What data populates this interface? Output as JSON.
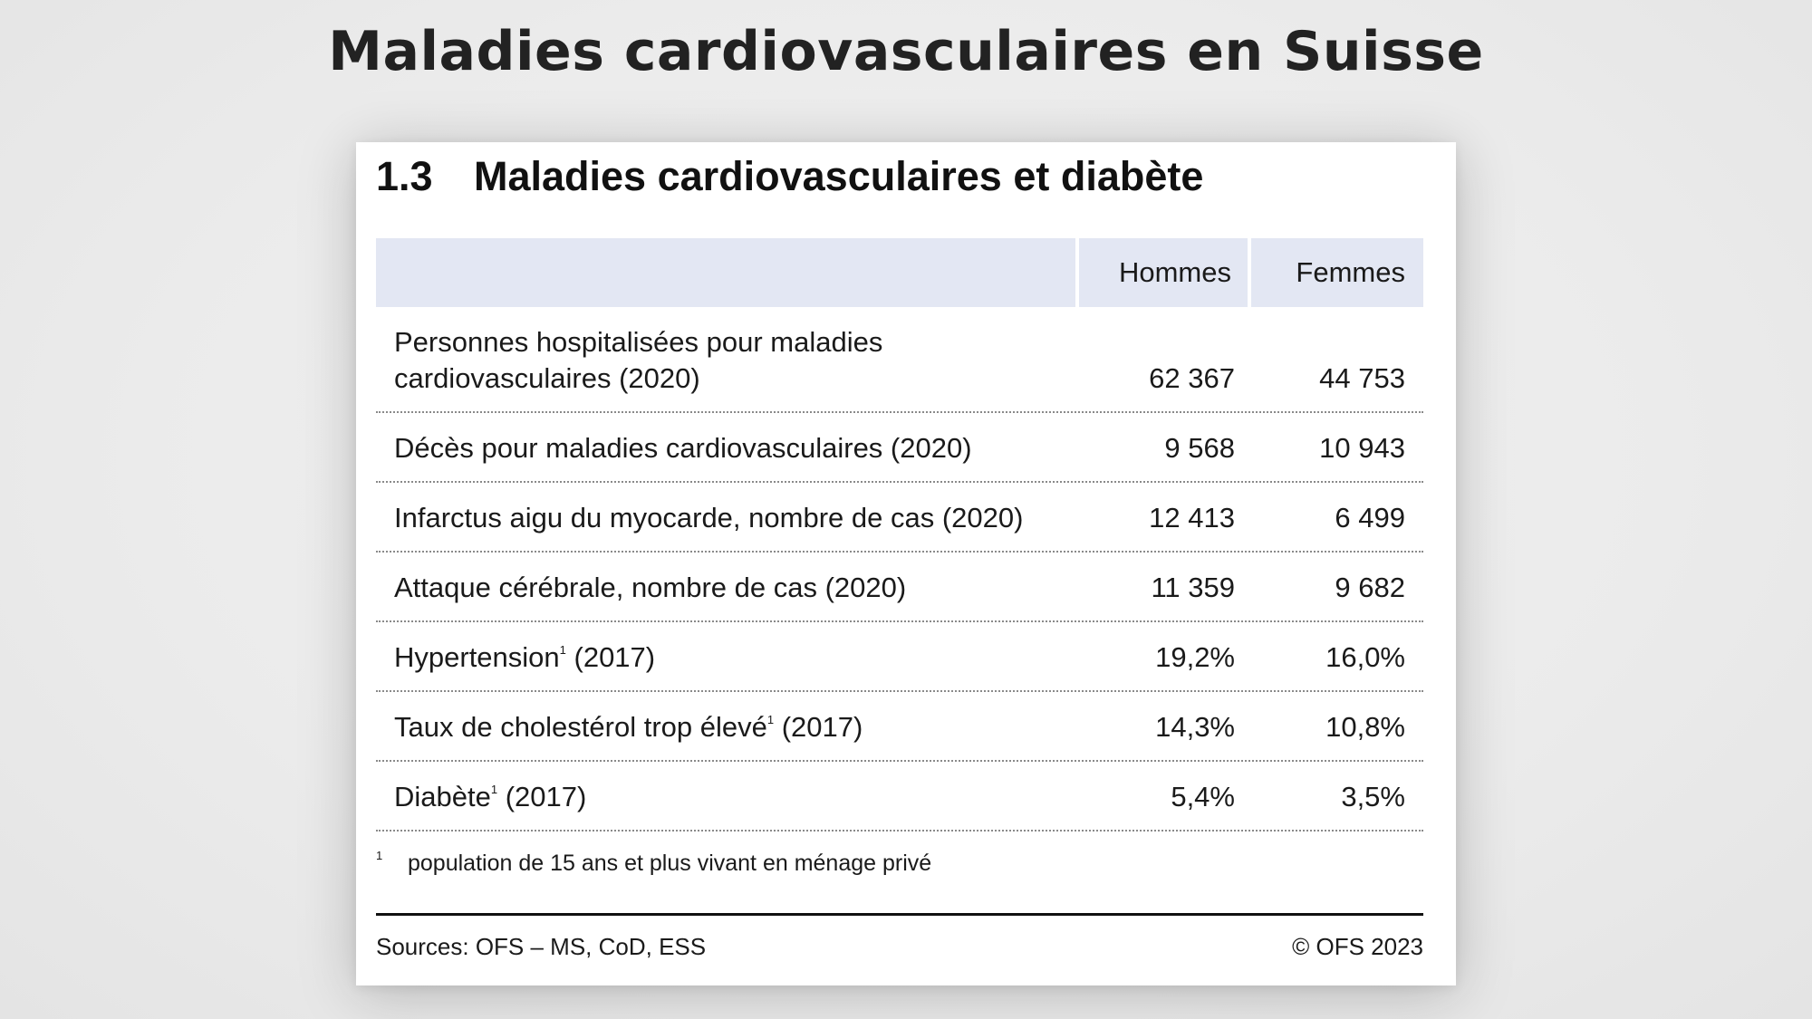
{
  "page": {
    "title": "Maladies cardiovasculaires en Suisse"
  },
  "table": {
    "section_number": "1.3",
    "title": "Maladies cardiovasculaires et diabète",
    "columns": [
      "",
      "Hommes",
      "Femmes"
    ],
    "rows": [
      {
        "label_line1": "Personnes hospitalisées pour maladies",
        "label_line2": "cardiovasculaires (2020)",
        "hommes": "62 367",
        "femmes": "44 753"
      },
      {
        "label": "Décès pour maladies cardiovasculaires (2020)",
        "hommes": "9 568",
        "femmes": "10 943"
      },
      {
        "label": "Infarctus aigu du myocarde, nombre de cas (2020)",
        "hommes": "12 413",
        "femmes": "6 499"
      },
      {
        "label": "Attaque cérébrale, nombre de cas (2020)",
        "hommes": "11 359",
        "femmes": "9 682"
      },
      {
        "label": "Hypertension",
        "sup": "1",
        "label_suffix": " (2017)",
        "hommes": "19,2%",
        "femmes": "16,0%"
      },
      {
        "label": "Taux de cholestérol trop élevé",
        "sup": "1",
        "label_suffix": " (2017)",
        "hommes": "14,3%",
        "femmes": "10,8%"
      },
      {
        "label": "Diabète",
        "sup": "1",
        "label_suffix": " (2017)",
        "hommes": "5,4%",
        "femmes": "3,5%"
      }
    ],
    "footnote_mark": "1",
    "footnote": "population de 15 ans et plus vivant en ménage privé",
    "sources": "Sources: OFS – MS, CoD, ESS",
    "copyright": "© OFS 2023"
  }
}
